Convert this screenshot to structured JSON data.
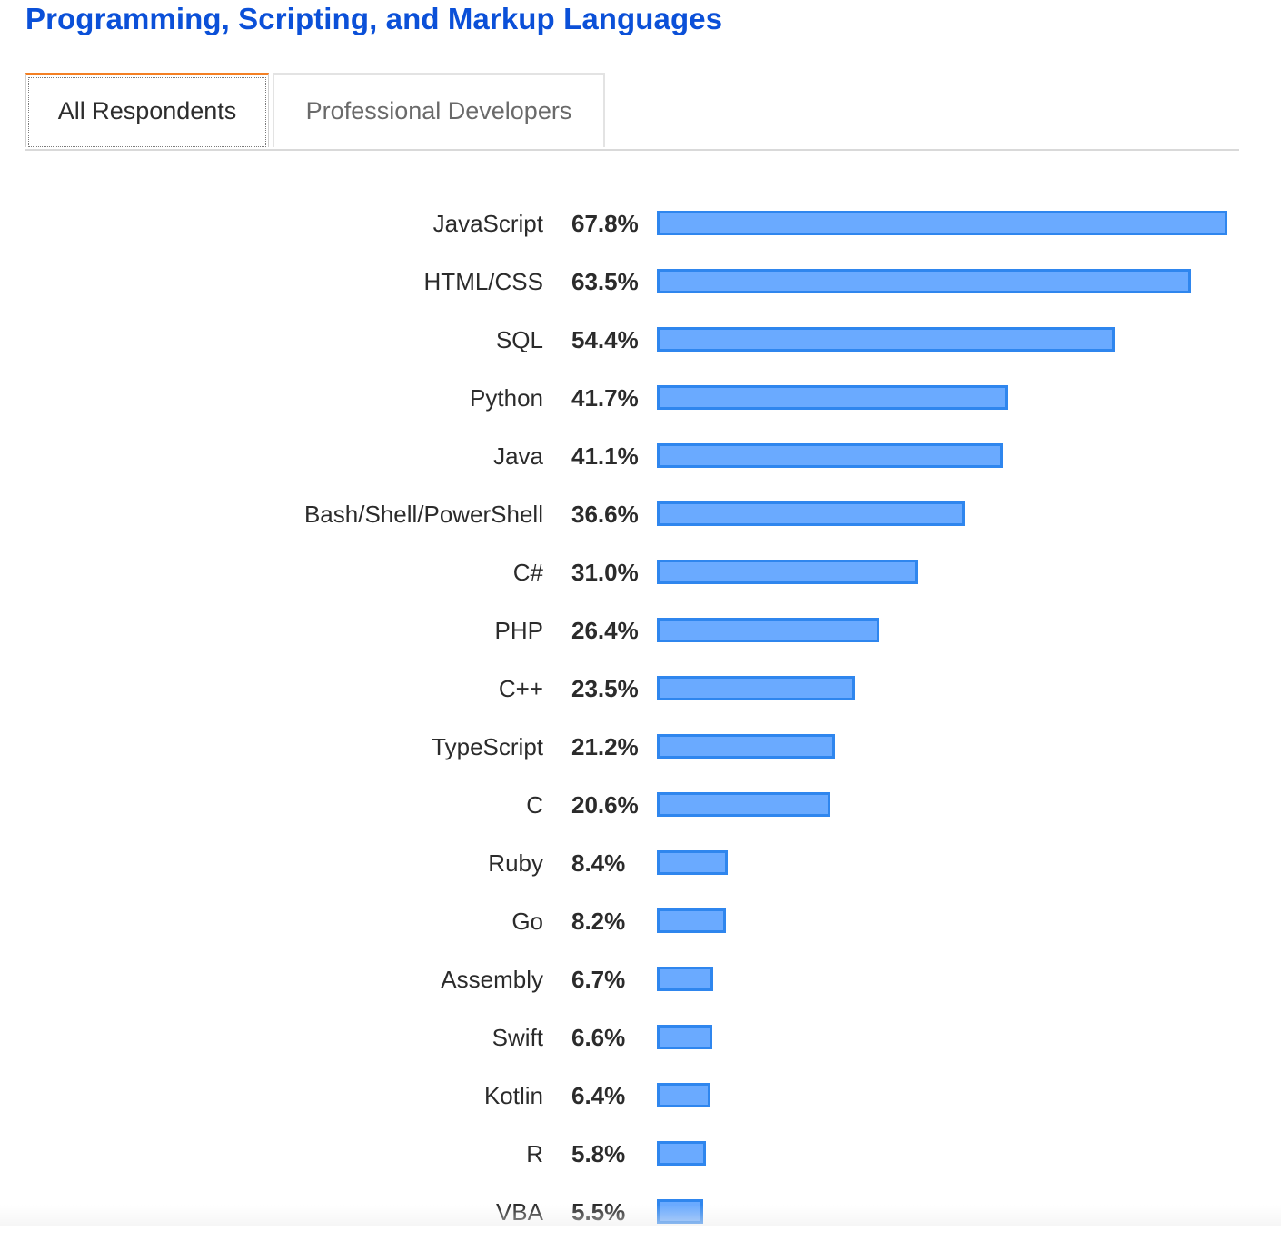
{
  "page": {
    "title": "Programming, Scripting, and Markup Languages"
  },
  "tabs": [
    {
      "label": "All Respondents",
      "active": true
    },
    {
      "label": "Professional Developers",
      "active": false
    }
  ],
  "colors": {
    "title": "#0b50d8",
    "active_tab_accent": "#f48024",
    "bar_fill": "#6aaaff",
    "bar_border": "#2f86ee"
  },
  "chart_data": {
    "type": "bar",
    "orientation": "horizontal",
    "title": "",
    "xlabel": "",
    "ylabel": "",
    "xlim": [
      0,
      67.8
    ],
    "grid": false,
    "categories": [
      "JavaScript",
      "HTML/CSS",
      "SQL",
      "Python",
      "Java",
      "Bash/Shell/PowerShell",
      "C#",
      "PHP",
      "C++",
      "TypeScript",
      "C",
      "Ruby",
      "Go",
      "Assembly",
      "Swift",
      "Kotlin",
      "R",
      "VBA"
    ],
    "values": [
      67.8,
      63.5,
      54.4,
      41.7,
      41.1,
      36.6,
      31.0,
      26.4,
      23.5,
      21.2,
      20.6,
      8.4,
      8.2,
      6.7,
      6.6,
      6.4,
      5.8,
      5.5
    ],
    "value_labels": [
      "67.8%",
      "63.5%",
      "54.4%",
      "41.7%",
      "41.1%",
      "36.6%",
      "31.0%",
      "26.4%",
      "23.5%",
      "21.2%",
      "20.6%",
      "8.4%",
      "8.2%",
      "6.7%",
      "6.6%",
      "6.4%",
      "5.8%",
      "5.5%"
    ]
  }
}
